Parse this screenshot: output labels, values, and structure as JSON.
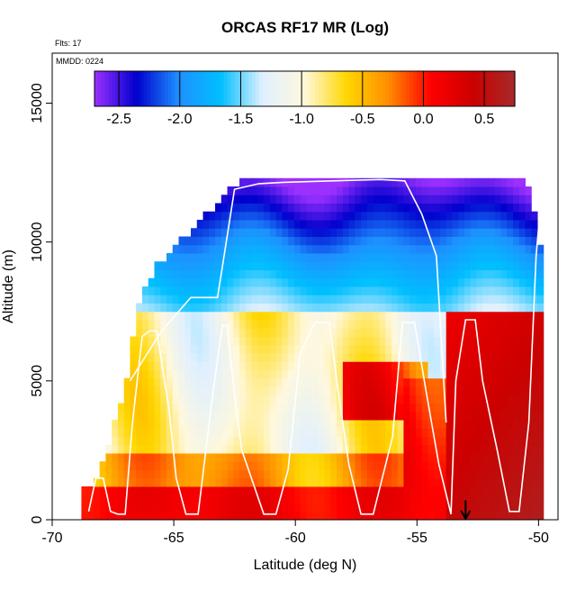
{
  "chart_data": {
    "type": "heatmap",
    "title": "ORCAS RF17 MR (Log)",
    "annotations": {
      "flights": "Flts: 17",
      "date": "MMDD: 0224"
    },
    "xlabel": "Latitude (deg N)",
    "ylabel": "Altitude (m)",
    "xlim": [
      -70,
      -49.2
    ],
    "ylim": [
      0,
      16800
    ],
    "xticks": [
      -70,
      -65,
      -60,
      -55,
      -50
    ],
    "yticks": [
      0,
      5000,
      10000,
      15000
    ],
    "grid": false,
    "legend": "colorbar at top",
    "colorbar": {
      "range": [
        -2.7,
        0.75
      ],
      "ticks": [
        -2.5,
        -2.0,
        -1.5,
        -1.0,
        -0.5,
        0.0,
        0.5
      ],
      "tick_labels": [
        "-2.5",
        "-2.0",
        "-1.5",
        "-1.0",
        "-0.5",
        "0.0",
        "0.5"
      ],
      "colors": [
        "#9b30ff",
        "#0000cd",
        "#1e90ff",
        "#00bfff",
        "#e0f0ff",
        "#fff8dc",
        "#ffd700",
        "#ff8c00",
        "#ff0000",
        "#cc0000",
        "#a52a2a"
      ]
    },
    "flight_track": {
      "lat": [
        -68.5,
        -68.2,
        -67.9,
        -67.6,
        -67.3,
        -67.0,
        -66.7,
        -66.3,
        -66.0,
        -65.7,
        -65.2,
        -64.9,
        -64.5,
        -64.0,
        -63.4,
        -63.0,
        -62.8,
        -62.5,
        -62.2,
        -61.3,
        -60.8,
        -60.3,
        -59.8,
        -59.2,
        -58.6,
        -58.3,
        -57.8,
        -57.3,
        -56.8,
        -56.0,
        -55.6,
        -55.1,
        -54.6,
        -54.1,
        -53.6,
        -53.4,
        -53.0,
        -52.6,
        -52.3,
        -51.7,
        -51.2,
        -50.8,
        -50.4,
        -50.1,
        -49.9,
        -49.8
      ],
      "alt": [
        300,
        1500,
        1500,
        300,
        200,
        200,
        3500,
        6600,
        6800,
        6800,
        4000,
        1500,
        200,
        200,
        4500,
        7000,
        7000,
        4500,
        2500,
        200,
        200,
        1800,
        6000,
        7100,
        7100,
        5000,
        2000,
        200,
        200,
        3000,
        7100,
        7100,
        4500,
        2000,
        200,
        5000,
        7200,
        7200,
        5000,
        2500,
        300,
        300,
        3500,
        9500,
        11500,
        11900
      ]
    },
    "upper_track": {
      "lat": [
        -66.8,
        -65.5,
        -64.3,
        -63.2,
        -62.5,
        -61.5,
        -60.5,
        -58.5,
        -56.5,
        -55.5,
        -54.8,
        -54.2,
        -53.8
      ],
      "alt": [
        5000,
        6800,
        8000,
        8000,
        11900,
        12100,
        12150,
        12200,
        12250,
        12200,
        11000,
        9500,
        3500
      ]
    },
    "marker": {
      "lat": -53.0,
      "type": "arrow-down"
    }
  }
}
